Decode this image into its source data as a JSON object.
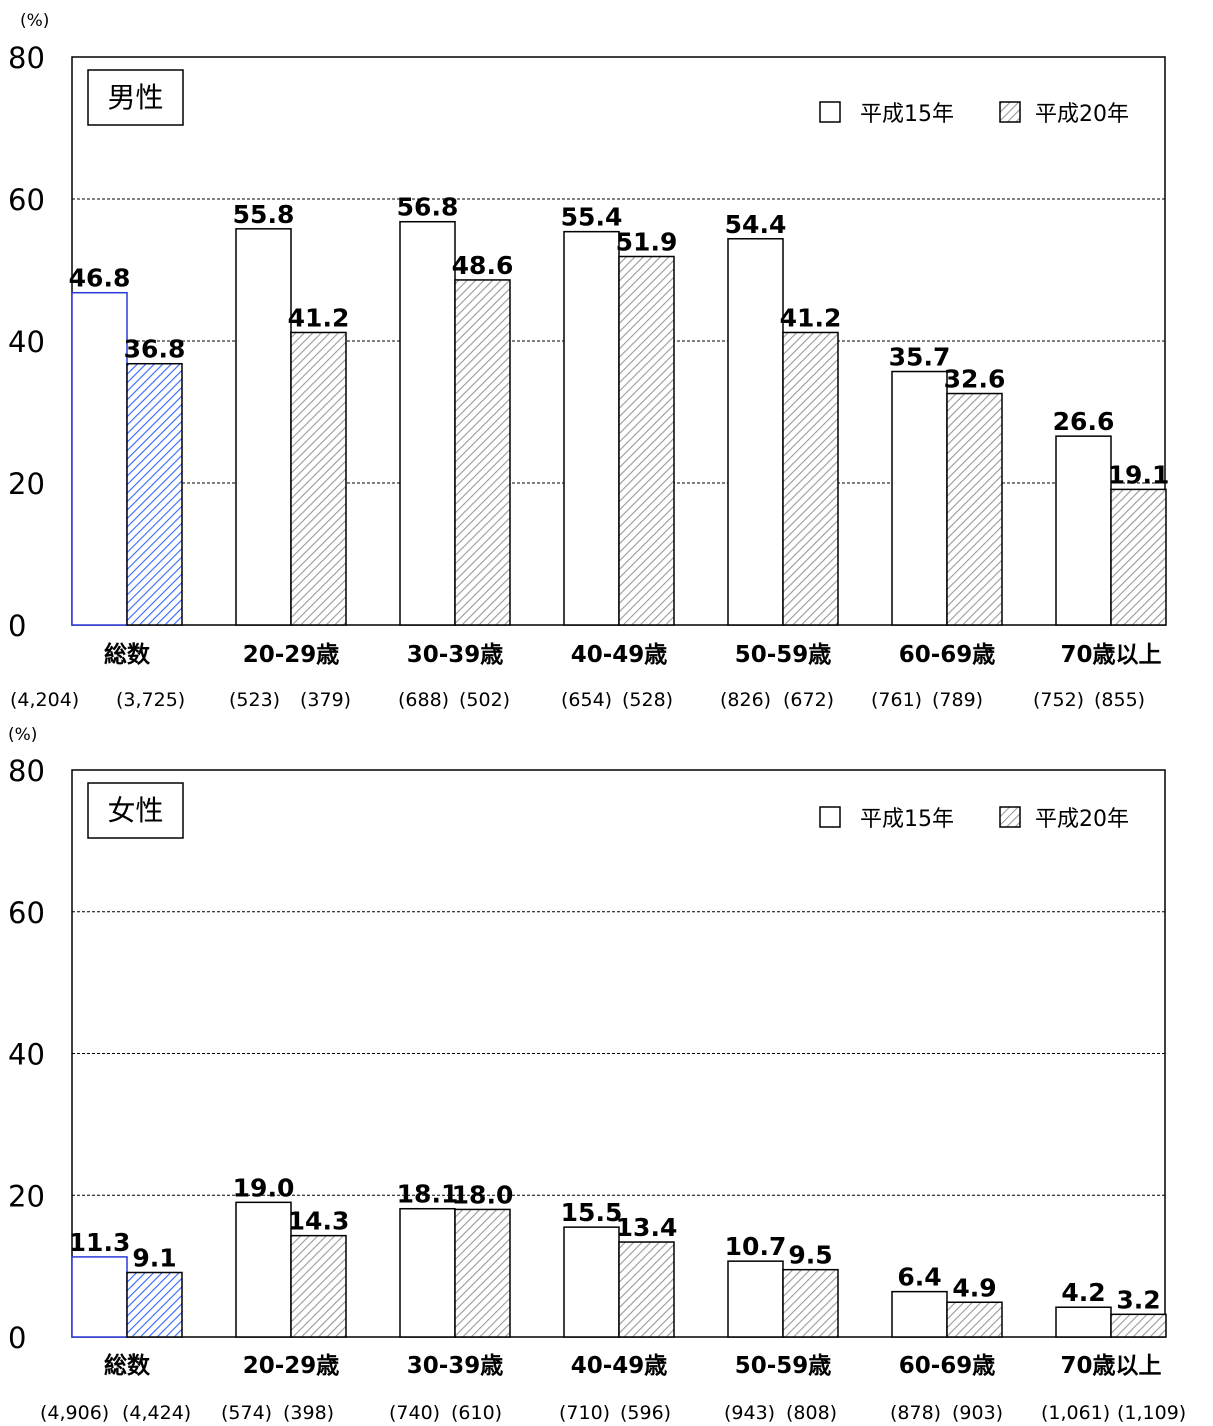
{
  "chart_data": [
    {
      "type": "bar",
      "title": "男性",
      "unit": "(%)",
      "ylim": [
        0,
        80
      ],
      "yticks": [
        0,
        20,
        40,
        60,
        80
      ],
      "grid": true,
      "legend_position": "top-right",
      "categories": [
        "総数",
        "20-29歳",
        "30-39歳",
        "40-49歳",
        "50-59歳",
        "60-69歳",
        "70歳以上"
      ],
      "counts": [
        [
          "(4,204)",
          "(3,725)"
        ],
        [
          "(523)",
          "(379)"
        ],
        [
          "(688)",
          "(502)"
        ],
        [
          "(654)",
          "(528)"
        ],
        [
          "(826)",
          "(672)"
        ],
        [
          "(761)",
          "(789)"
        ],
        [
          "(752)",
          "(855)"
        ]
      ],
      "series": [
        {
          "name": "平成15年",
          "values": [
            46.8,
            55.8,
            56.8,
            55.4,
            54.4,
            35.7,
            26.6
          ],
          "labels": [
            "46.8",
            "55.8",
            "56.8",
            "55.4",
            "54.4",
            "35.7",
            "26.6"
          ]
        },
        {
          "name": "平成20年",
          "values": [
            36.8,
            41.2,
            48.6,
            51.9,
            41.2,
            32.6,
            19.1
          ],
          "labels": [
            "36.8",
            "41.2",
            "48.6",
            "51.9",
            "41.2",
            "32.6",
            "19.1"
          ]
        }
      ]
    },
    {
      "type": "bar",
      "title": "女性",
      "unit": "(%)",
      "ylim": [
        0,
        80
      ],
      "yticks": [
        0,
        20,
        40,
        60,
        80
      ],
      "grid": true,
      "legend_position": "top-right",
      "categories": [
        "総数",
        "20-29歳",
        "30-39歳",
        "40-49歳",
        "50-59歳",
        "60-69歳",
        "70歳以上"
      ],
      "counts": [
        [
          "(4,906)",
          "(4,424)"
        ],
        [
          "(574)",
          "(398)"
        ],
        [
          "(740)",
          "(610)"
        ],
        [
          "(710)",
          "(596)"
        ],
        [
          "(943)",
          "(808)"
        ],
        [
          "(878)",
          "(903)"
        ],
        [
          "(1,061)",
          "(1,109)"
        ]
      ],
      "series": [
        {
          "name": "平成15年",
          "values": [
            11.3,
            19.0,
            18.1,
            15.5,
            10.7,
            6.4,
            4.2
          ],
          "labels": [
            "11.3",
            "19.0",
            "18.1",
            "15.5",
            "10.7",
            "6.4",
            "4.2"
          ]
        },
        {
          "name": "平成20年",
          "values": [
            9.1,
            14.3,
            18.0,
            13.4,
            9.5,
            4.9,
            3.2
          ],
          "labels": [
            "9.1",
            "14.3",
            "18.0",
            "13.4",
            "9.5",
            "4.9",
            "3.2"
          ]
        }
      ]
    }
  ],
  "colors": {
    "bar_fill_2003": "#ffffff",
    "bar_stroke": "#000000",
    "hatch_gray": "#9a9a9a",
    "hatch_blue": "#3366ff",
    "total_highlight": "#2a3adb",
    "grid": "#000000"
  }
}
